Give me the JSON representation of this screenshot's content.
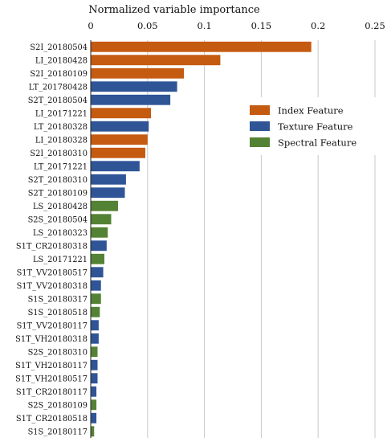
{
  "chart_data": {
    "type": "bar",
    "orientation": "horizontal",
    "title": "",
    "xlabel": "Normalized variable importance",
    "ylabel": "",
    "xlim": [
      0,
      0.25
    ],
    "xticks": [
      "0",
      "0.05",
      "0.1",
      "0.15",
      "0.2",
      "0.25"
    ],
    "xtick_values": [
      0,
      0.05,
      0.1,
      0.15,
      0.2,
      0.25
    ],
    "grid": "vertical",
    "legend_position": "upper-right",
    "colors": {
      "Index Feature": "#C55A11",
      "Texture Feature": "#2F5597",
      "Spectral Feature": "#548235"
    },
    "legend": [
      "Index Feature",
      "Texture Feature",
      "Spectral Feature"
    ],
    "categories": [
      "S2I_20180504",
      "LI_20180428",
      "S2I_20180109",
      "LT_201780428",
      "S2T_20180504",
      "LI_20171221",
      "LT_20180328",
      "LI_20180328",
      "S2I_20180310",
      "LT_20171221",
      "S2T_20180310",
      "S2T_20180109",
      "LS_20180428",
      "S2S_20180504",
      "LS_20180323",
      "S1T_CR20180318",
      "LS_20171221",
      "S1T_VV20180517",
      "S1T_VV20180318",
      "S1S_20180317",
      "S1S_20180518",
      "S1T_VV20180117",
      "S1T_VH20180318",
      "S2S_20180310",
      "S1T_VH20180117",
      "S1T_VH20180517",
      "S1T_CR20180117",
      "S2S_20180109",
      "S1T_CR20180518",
      "S1S_20180117"
    ],
    "values": [
      0.194,
      0.114,
      0.082,
      0.076,
      0.07,
      0.053,
      0.051,
      0.05,
      0.048,
      0.043,
      0.031,
      0.03,
      0.024,
      0.018,
      0.015,
      0.014,
      0.012,
      0.011,
      0.009,
      0.009,
      0.008,
      0.007,
      0.007,
      0.006,
      0.006,
      0.006,
      0.005,
      0.005,
      0.005,
      0.003
    ],
    "groups": [
      "Index Feature",
      "Index Feature",
      "Index Feature",
      "Texture Feature",
      "Texture Feature",
      "Index Feature",
      "Texture Feature",
      "Index Feature",
      "Index Feature",
      "Texture Feature",
      "Texture Feature",
      "Texture Feature",
      "Spectral Feature",
      "Spectral Feature",
      "Spectral Feature",
      "Texture Feature",
      "Spectral Feature",
      "Texture Feature",
      "Texture Feature",
      "Spectral Feature",
      "Spectral Feature",
      "Texture Feature",
      "Texture Feature",
      "Spectral Feature",
      "Texture Feature",
      "Texture Feature",
      "Texture Feature",
      "Spectral Feature",
      "Texture Feature",
      "Spectral Feature"
    ]
  }
}
